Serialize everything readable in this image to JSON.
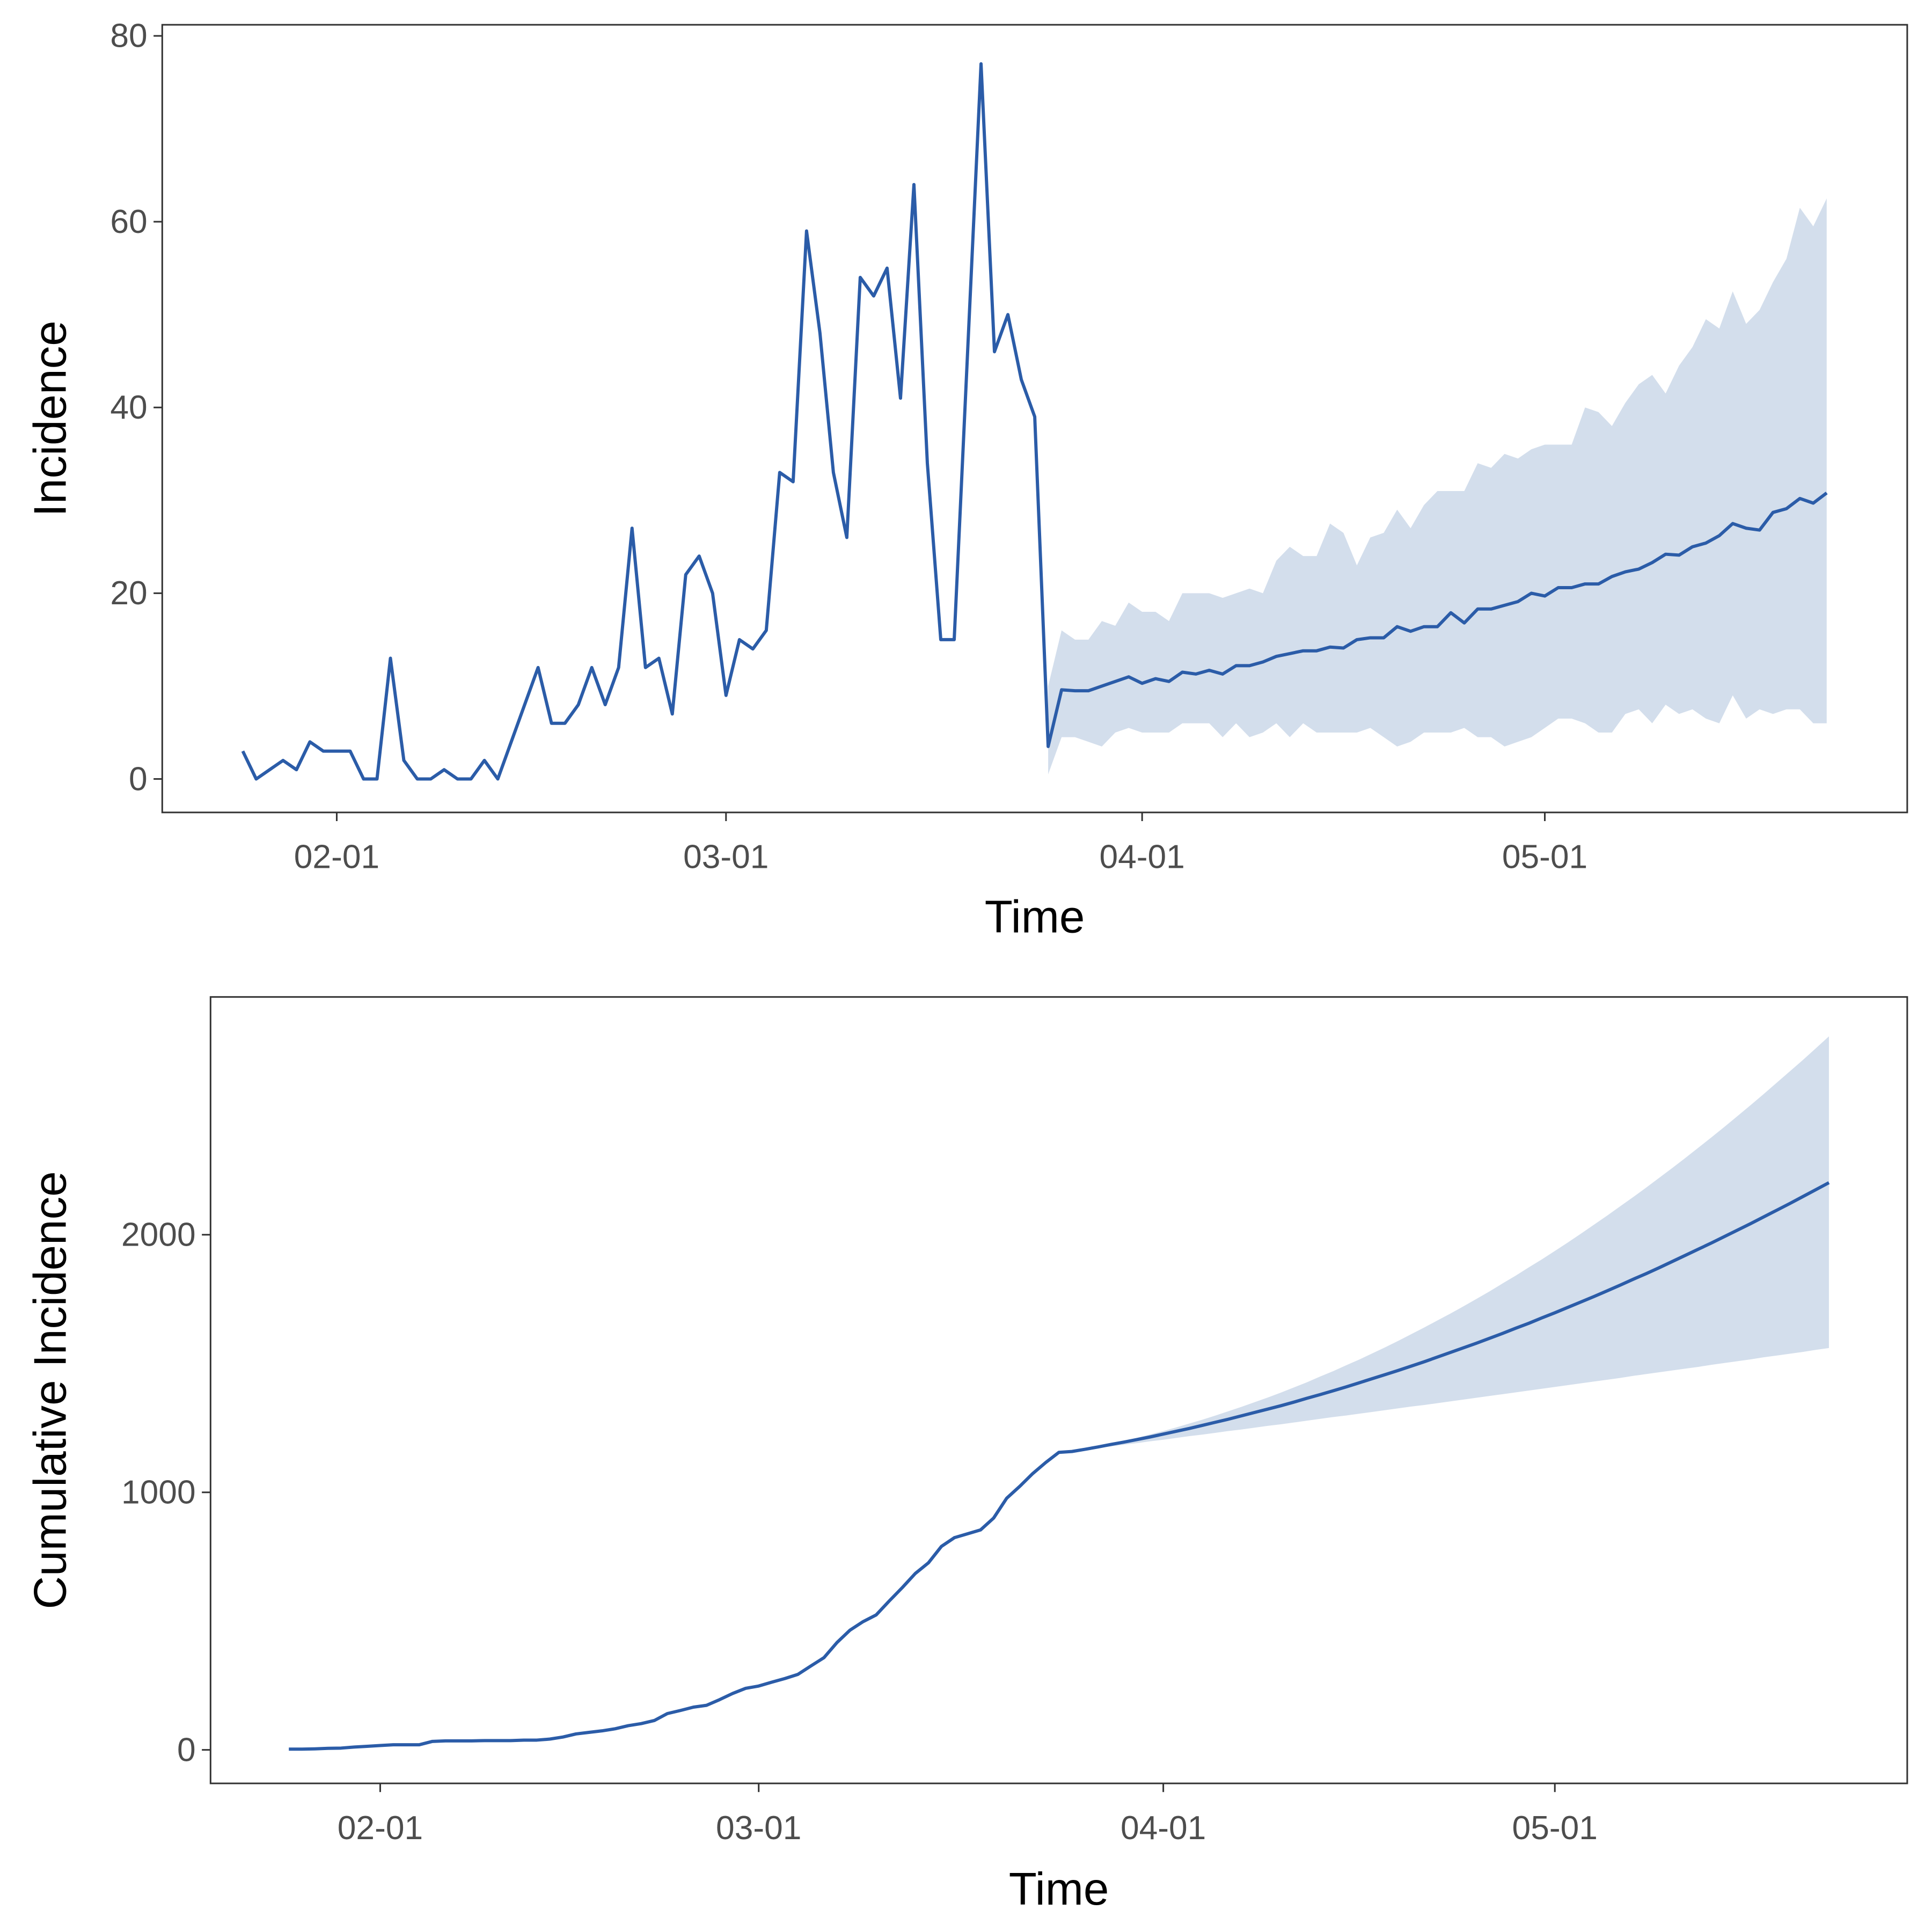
{
  "chart_data": [
    {
      "type": "line",
      "xlabel": "Time",
      "ylabel": "Incidence",
      "x": [
        "01-25",
        "01-26",
        "01-27",
        "01-28",
        "01-29",
        "01-30",
        "01-31",
        "02-01",
        "02-02",
        "02-03",
        "02-04",
        "02-05",
        "02-06",
        "02-07",
        "02-08",
        "02-09",
        "02-10",
        "02-11",
        "02-12",
        "02-13",
        "02-14",
        "02-15",
        "02-16",
        "02-17",
        "02-18",
        "02-19",
        "02-20",
        "02-21",
        "02-22",
        "02-23",
        "02-24",
        "02-25",
        "02-26",
        "02-27",
        "02-28",
        "02-29",
        "03-01",
        "03-02",
        "03-03",
        "03-04",
        "03-05",
        "03-06",
        "03-07",
        "03-08",
        "03-09",
        "03-10",
        "03-11",
        "03-12",
        "03-13",
        "03-14",
        "03-15",
        "03-16",
        "03-17",
        "03-18",
        "03-19",
        "03-20",
        "03-21",
        "03-22",
        "03-23",
        "03-24",
        "03-25",
        "03-26",
        "03-27",
        "03-28",
        "03-29",
        "03-30",
        "03-31",
        "04-01",
        "04-02",
        "04-03",
        "04-04",
        "04-05",
        "04-06",
        "04-07",
        "04-08",
        "04-09",
        "04-10",
        "04-11",
        "04-12",
        "04-13",
        "04-14",
        "04-15",
        "04-16",
        "04-17",
        "04-18",
        "04-19",
        "04-20",
        "04-21",
        "04-22",
        "04-23",
        "04-24",
        "04-25",
        "04-26",
        "04-27",
        "04-28",
        "04-29",
        "04-30",
        "05-01",
        "05-02",
        "05-03",
        "05-04",
        "05-05",
        "05-06",
        "05-07",
        "05-08",
        "05-09",
        "05-10",
        "05-11",
        "05-12",
        "05-13",
        "05-14",
        "05-15",
        "05-16",
        "05-17",
        "05-18",
        "05-19",
        "05-20",
        "05-21",
        "05-22"
      ],
      "xlim": [
        "01-19",
        "05-28"
      ],
      "xticks": [
        "02-01",
        "03-01",
        "04-01",
        "05-01"
      ],
      "ylim": [
        -3.6,
        81.2
      ],
      "yticks": [
        0,
        20,
        40,
        60,
        80
      ],
      "series": [
        {
          "color": "#2b5ca8",
          "fill": "#d3deec",
          "values": [
            3,
            0,
            1,
            2,
            1,
            4,
            3,
            3,
            3,
            0,
            0,
            13,
            2,
            0,
            0,
            1,
            0,
            0,
            2,
            0,
            4,
            8,
            12,
            6,
            6,
            8,
            12,
            8,
            12,
            27,
            12,
            13,
            7,
            22,
            24,
            20,
            9,
            15,
            14,
            16,
            33,
            32,
            59,
            48,
            33,
            26,
            54,
            52,
            55,
            41,
            64,
            34,
            15,
            15,
            46,
            77,
            46,
            50,
            43,
            39,
            3.5,
            9.6,
            9.5,
            9.5,
            10,
            10.5,
            11,
            10.3,
            10.8,
            10.5,
            11.5,
            11.3,
            11.7,
            11.3,
            12.2,
            12.2,
            12.6,
            13.2,
            13.5,
            13.8,
            13.8,
            14.2,
            14.1,
            15,
            15.2,
            15.2,
            16.4,
            15.9,
            16.4,
            16.4,
            17.9,
            16.8,
            18.3,
            18.3,
            18.7,
            19.1,
            20,
            19.7,
            20.6,
            20.6,
            21,
            21,
            21.8,
            22.3,
            22.6,
            23.3,
            24.2,
            24.1,
            25,
            25.4,
            26.2,
            27.5,
            27,
            26.8,
            28.7,
            29.1,
            30.2,
            29.7,
            30.8
          ],
          "lower": [
            null,
            null,
            null,
            null,
            null,
            null,
            null,
            null,
            null,
            null,
            null,
            null,
            null,
            null,
            null,
            null,
            null,
            null,
            null,
            null,
            null,
            null,
            null,
            null,
            null,
            null,
            null,
            null,
            null,
            null,
            null,
            null,
            null,
            null,
            null,
            null,
            null,
            null,
            null,
            null,
            null,
            null,
            null,
            null,
            null,
            null,
            null,
            null,
            null,
            null,
            null,
            null,
            null,
            null,
            null,
            null,
            null,
            null,
            null,
            null,
            0.5,
            4.5,
            4.5,
            4,
            3.5,
            5,
            5.5,
            5,
            5,
            5,
            6,
            6,
            6,
            4.5,
            6,
            4.5,
            5,
            6,
            4.5,
            6,
            5,
            5,
            5,
            5,
            5.5,
            4.5,
            3.5,
            4,
            5,
            5,
            5,
            5.5,
            4.5,
            4.5,
            3.5,
            4,
            4.5,
            5.5,
            6.5,
            6.5,
            6,
            5,
            5,
            7,
            7.5,
            6,
            8,
            7,
            7.5,
            6.5,
            6,
            9,
            6.5,
            7.5,
            7,
            7.5,
            7.5,
            6,
            6
          ],
          "upper": [
            null,
            null,
            null,
            null,
            null,
            null,
            null,
            null,
            null,
            null,
            null,
            null,
            null,
            null,
            null,
            null,
            null,
            null,
            null,
            null,
            null,
            null,
            null,
            null,
            null,
            null,
            null,
            null,
            null,
            null,
            null,
            null,
            null,
            null,
            null,
            null,
            null,
            null,
            null,
            null,
            null,
            null,
            null,
            null,
            null,
            null,
            null,
            null,
            null,
            null,
            null,
            null,
            null,
            null,
            null,
            null,
            null,
            null,
            null,
            null,
            10,
            16,
            15,
            15,
            17,
            16.5,
            19,
            18,
            18,
            17,
            20,
            20,
            20,
            19.5,
            20,
            20.5,
            20,
            23.5,
            25,
            24,
            24,
            27.5,
            26.5,
            23,
            26,
            26.5,
            29,
            27,
            29.5,
            31,
            31,
            31,
            34,
            33.5,
            35,
            34.5,
            35.5,
            36,
            36,
            36,
            40,
            39.5,
            38,
            40.5,
            42.5,
            43.5,
            41.5,
            44.5,
            46.5,
            49.5,
            48.5,
            52.5,
            49,
            50.5,
            53.5,
            56,
            61.5,
            59.5,
            62.5
          ]
        }
      ]
    },
    {
      "type": "line",
      "xlabel": "Time",
      "ylabel": "Cumulative Incidence",
      "x": [
        "01-25",
        "01-26",
        "01-27",
        "01-28",
        "01-29",
        "01-30",
        "01-31",
        "02-01",
        "02-02",
        "02-03",
        "02-04",
        "02-05",
        "02-06",
        "02-07",
        "02-08",
        "02-09",
        "02-10",
        "02-11",
        "02-12",
        "02-13",
        "02-14",
        "02-15",
        "02-16",
        "02-17",
        "02-18",
        "02-19",
        "02-20",
        "02-21",
        "02-22",
        "02-23",
        "02-24",
        "02-25",
        "02-26",
        "02-27",
        "02-28",
        "02-29",
        "03-01",
        "03-02",
        "03-03",
        "03-04",
        "03-05",
        "03-06",
        "03-07",
        "03-08",
        "03-09",
        "03-10",
        "03-11",
        "03-12",
        "03-13",
        "03-14",
        "03-15",
        "03-16",
        "03-17",
        "03-18",
        "03-19",
        "03-20",
        "03-21",
        "03-22",
        "03-23",
        "03-24",
        "03-25",
        "03-26",
        "03-27",
        "03-28",
        "03-29",
        "03-30",
        "03-31",
        "04-01",
        "04-02",
        "04-03",
        "04-04",
        "04-05",
        "04-06",
        "04-07",
        "04-08",
        "04-09",
        "04-10",
        "04-11",
        "04-12",
        "04-13",
        "04-14",
        "04-15",
        "04-16",
        "04-17",
        "04-18",
        "04-19",
        "04-20",
        "04-21",
        "04-22",
        "04-23",
        "04-24",
        "04-25",
        "04-26",
        "04-27",
        "04-28",
        "04-29",
        "04-30",
        "05-01",
        "05-02",
        "05-03",
        "05-04",
        "05-05",
        "05-06",
        "05-07",
        "05-08",
        "05-09",
        "05-10",
        "05-11",
        "05-12",
        "05-13",
        "05-14",
        "05-15",
        "05-16",
        "05-17",
        "05-18",
        "05-19",
        "05-20",
        "05-21",
        "05-22"
      ],
      "xlim": [
        "01-19",
        "05-28"
      ],
      "xticks": [
        "02-01",
        "03-01",
        "04-01",
        "05-01"
      ],
      "ylim": [
        -130,
        2923
      ],
      "yticks": [
        0,
        1000,
        2000
      ],
      "series": [
        {
          "color": "#2b5ca8",
          "fill": "#d3deec",
          "values": [
            3,
            3,
            4,
            6,
            7,
            11,
            14,
            17,
            20,
            20,
            20,
            33,
            35,
            35,
            35,
            36,
            36,
            36,
            38,
            38,
            42,
            50,
            62,
            68,
            74,
            82,
            94,
            102,
            114,
            141,
            153,
            166,
            173,
            195,
            219,
            239,
            248,
            263,
            277,
            293,
            326,
            358,
            417,
            465,
            498,
            524,
            578,
            630,
            685,
            726,
            790,
            824,
            839,
            854,
            900,
            977,
            1023,
            1073,
            1116,
            1155,
            1158.5,
            1167,
            1176,
            1186,
            1195,
            1205,
            1215,
            1226,
            1237,
            1248,
            1260,
            1272,
            1284,
            1297,
            1310,
            1323,
            1336,
            1350,
            1365,
            1379,
            1394,
            1409,
            1425,
            1441,
            1457,
            1473,
            1490,
            1507,
            1525,
            1543,
            1561,
            1579,
            1598,
            1617,
            1637,
            1656,
            1677,
            1697,
            1718,
            1739,
            1760,
            1782,
            1804,
            1827,
            1849,
            1872,
            1896,
            1920,
            1944,
            1968,
            1993,
            2018,
            2043,
            2069,
            2095,
            2121,
            2148,
            2175,
            2202
          ],
          "lower": [
            null,
            null,
            null,
            null,
            null,
            null,
            null,
            null,
            null,
            null,
            null,
            null,
            null,
            null,
            null,
            null,
            null,
            null,
            null,
            null,
            null,
            null,
            null,
            null,
            null,
            null,
            null,
            null,
            null,
            null,
            null,
            null,
            null,
            null,
            null,
            null,
            null,
            null,
            null,
            null,
            null,
            null,
            null,
            null,
            null,
            null,
            null,
            null,
            null,
            null,
            null,
            null,
            null,
            null,
            null,
            null,
            null,
            null,
            null,
            null,
            1158.5,
            1165,
            1172,
            1178,
            1185,
            1191,
            1198,
            1204,
            1211,
            1218,
            1224,
            1231,
            1238,
            1244,
            1251,
            1258,
            1264,
            1271,
            1278,
            1285,
            1292,
            1298,
            1305,
            1312,
            1319,
            1326,
            1333,
            1339,
            1346,
            1353,
            1360,
            1367,
            1374,
            1381,
            1388,
            1395,
            1402,
            1409,
            1416,
            1423,
            1430,
            1437,
            1444,
            1452,
            1459,
            1466,
            1473,
            1480,
            1487,
            1495,
            1502,
            1509,
            1516,
            1524,
            1531,
            1538,
            1545,
            1553,
            1560
          ],
          "upper": [
            null,
            null,
            null,
            null,
            null,
            null,
            null,
            null,
            null,
            null,
            null,
            null,
            null,
            null,
            null,
            null,
            null,
            null,
            null,
            null,
            null,
            null,
            null,
            null,
            null,
            null,
            null,
            null,
            null,
            null,
            null,
            null,
            null,
            null,
            null,
            null,
            null,
            null,
            null,
            null,
            null,
            null,
            null,
            null,
            null,
            null,
            null,
            null,
            null,
            null,
            null,
            null,
            null,
            null,
            null,
            null,
            null,
            null,
            null,
            null,
            1158.5,
            1168,
            1178,
            1189,
            1200,
            1212,
            1225,
            1238,
            1252,
            1267,
            1282,
            1298,
            1315,
            1332,
            1350,
            1368,
            1387,
            1407,
            1427,
            1449,
            1470,
            1493,
            1515,
            1539,
            1563,
            1588,
            1614,
            1640,
            1667,
            1694,
            1722,
            1751,
            1780,
            1811,
            1841,
            1873,
            1904,
            1937,
            1970,
            2004,
            2039,
            2074,
            2110,
            2146,
            2183,
            2221,
            2259,
            2298,
            2338,
            2378,
            2419,
            2461,
            2503,
            2546,
            2590,
            2634,
            2678,
            2724,
            2770
          ]
        }
      ]
    }
  ]
}
